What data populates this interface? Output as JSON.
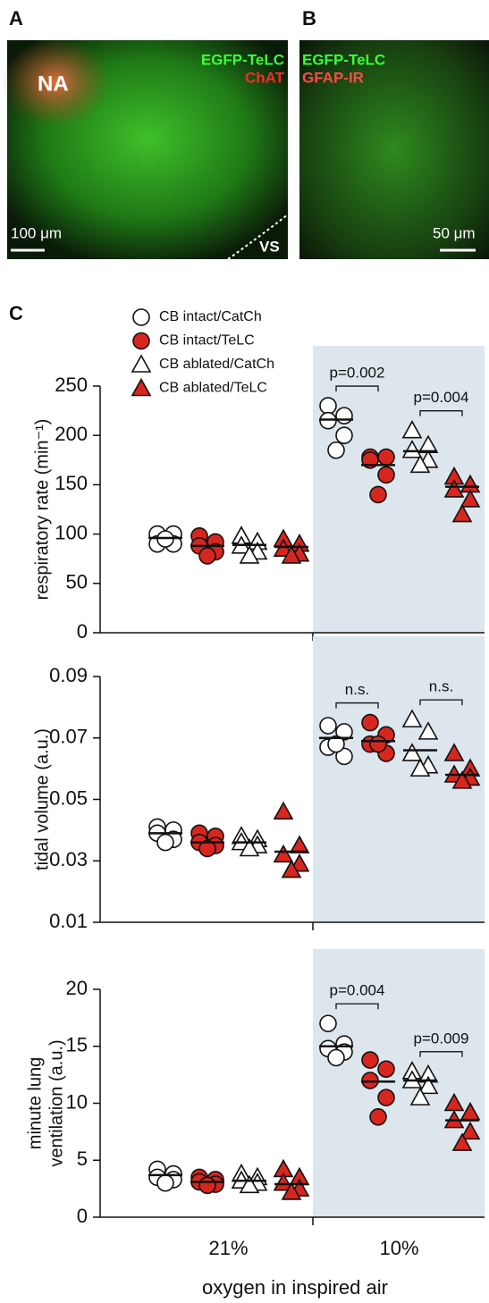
{
  "panel_labels": [
    "A",
    "B",
    "C"
  ],
  "images": [
    {
      "texts": [
        "NA",
        "EGFP-TeLC",
        "ChAT",
        "100 μm",
        "VS"
      ]
    },
    {
      "texts": [
        "EGFP-TeLC",
        "GFAP-IR",
        "50 μm"
      ]
    }
  ],
  "chart_data": [
    {
      "type": "strip",
      "ylabel": "respiratory rate (min⁻¹)",
      "ylim": [
        0,
        250
      ],
      "yticks": [
        0,
        50,
        100,
        150,
        200,
        250
      ],
      "annotations": [
        "p=0.002",
        "p=0.004"
      ],
      "series": [
        {
          "name": "CB intact/CatCh",
          "color": "#ffffff",
          "marker": "circle",
          "values": [
            [
              100,
              100,
              90,
              90,
              95
            ],
            [
              230,
              220,
              215,
              200,
              185
            ]
          ],
          "means": [
            96,
            216
          ]
        },
        {
          "name": "CB intact/TeLC",
          "color": "#d7261e",
          "marker": "circle",
          "values": [
            [
              98,
              92,
              88,
              82,
              78
            ],
            [
              178,
              178,
              175,
              160,
              140
            ]
          ],
          "means": [
            88,
            170
          ]
        },
        {
          "name": "CB ablated/CatCh",
          "color": "#ffffff",
          "marker": "triangle",
          "values": [
            [
              98,
              92,
              88,
              82,
              78
            ],
            [
              205,
              190,
              185,
              175,
              170
            ]
          ],
          "means": [
            89,
            184
          ]
        },
        {
          "name": "CB ablated/TeLC",
          "color": "#d7261e",
          "marker": "triangle",
          "values": [
            [
              95,
              90,
              85,
              80,
              78
            ],
            [
              158,
              150,
              145,
              135,
              120
            ]
          ],
          "means": [
            87,
            148
          ]
        }
      ]
    },
    {
      "type": "strip",
      "ylabel": "tidal volume (a.u.)",
      "ylim": [
        0.01,
        0.09
      ],
      "yticks": [
        0.01,
        0.03,
        0.05,
        0.07,
        0.09
      ],
      "annotations": [
        "n.s.",
        "n.s."
      ],
      "series": [
        {
          "color": "#ffffff",
          "marker": "circle",
          "values": [
            [
              0.041,
              0.04,
              0.039,
              0.037,
              0.036
            ],
            [
              0.074,
              0.072,
              0.067,
              0.064,
              0.068
            ]
          ],
          "means": [
            0.039,
            0.07
          ]
        },
        {
          "color": "#d7261e",
          "marker": "circle",
          "values": [
            [
              0.039,
              0.038,
              0.036,
              0.035,
              0.034
            ],
            [
              0.075,
              0.071,
              0.068,
              0.065,
              0.068
            ]
          ],
          "means": [
            0.036,
            0.069
          ]
        },
        {
          "color": "#ffffff",
          "marker": "triangle",
          "values": [
            [
              0.038,
              0.037,
              0.036,
              0.035,
              0.034
            ],
            [
              0.076,
              0.072,
              0.065,
              0.061,
              0.06
            ]
          ],
          "means": [
            0.036,
            0.066
          ]
        },
        {
          "color": "#d7261e",
          "marker": "triangle",
          "values": [
            [
              0.046,
              0.035,
              0.032,
              0.029,
              0.027
            ],
            [
              0.065,
              0.06,
              0.058,
              0.057,
              0.056
            ]
          ],
          "means": [
            0.033,
            0.058
          ]
        }
      ]
    },
    {
      "type": "strip",
      "ylabel": [
        "minute lung",
        "ventilation (a.u.)"
      ],
      "ylim": [
        0,
        20
      ],
      "yticks": [
        0,
        5,
        10,
        15,
        20
      ],
      "annotations": [
        "p=0.004",
        "p=0.009"
      ],
      "categories": [
        "21%",
        "10%"
      ],
      "xlabel": "oxygen in inspired air",
      "series": [
        {
          "color": "#ffffff",
          "marker": "circle",
          "values": [
            [
              4.2,
              3.8,
              3.5,
              3.3,
              3.0
            ],
            [
              17,
              15.2,
              14.8,
              14.5,
              14
            ]
          ],
          "means": [
            3.7,
            15
          ]
        },
        {
          "color": "#d7261e",
          "marker": "circle",
          "values": [
            [
              3.5,
              3.3,
              3.1,
              2.9,
              2.8
            ],
            [
              13.8,
              13,
              12,
              10.5,
              8.8
            ]
          ],
          "means": [
            3.1,
            11.9
          ]
        },
        {
          "color": "#ffffff",
          "marker": "triangle",
          "values": [
            [
              3.8,
              3.5,
              3.2,
              3.0,
              2.8
            ],
            [
              12.8,
              12.5,
              12,
              11.5,
              10.5
            ]
          ],
          "means": [
            3.2,
            12
          ]
        },
        {
          "color": "#d7261e",
          "marker": "triangle",
          "values": [
            [
              4.2,
              3.5,
              3.0,
              2.5,
              2.2
            ],
            [
              10,
              9.2,
              8.5,
              7.5,
              6.5
            ]
          ],
          "means": [
            2.9,
            8.5
          ]
        }
      ]
    }
  ]
}
